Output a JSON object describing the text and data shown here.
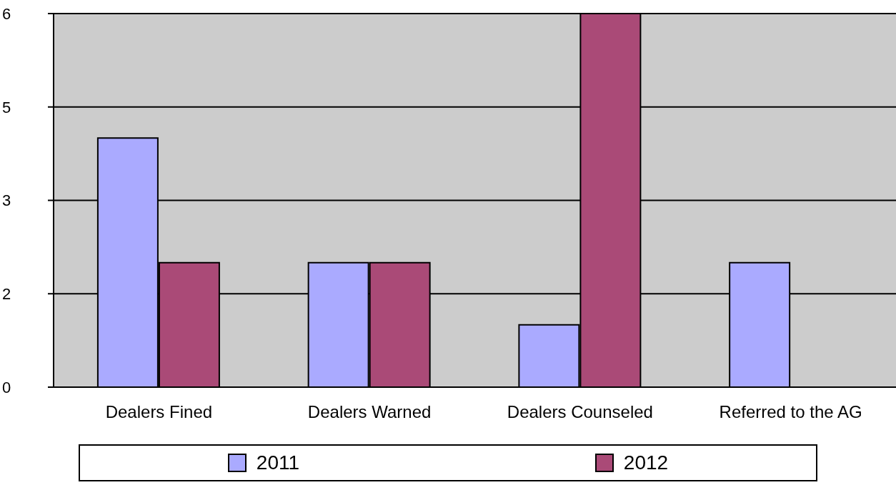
{
  "chart_data": {
    "type": "bar",
    "categories": [
      "Dealers Fined",
      "Dealers Warned",
      "Dealers Counseled",
      "Referred to the AG"
    ],
    "series": [
      {
        "name": "2011",
        "color": "#aaaaff",
        "values": [
          4,
          2,
          1,
          2
        ]
      },
      {
        "name": "2012",
        "color": "#aa4a77",
        "values": [
          2,
          2,
          6,
          null
        ]
      }
    ],
    "ylim": [
      0,
      6
    ],
    "yticks": [
      0,
      {
        "value": 1.5,
        "label": "2"
      },
      3,
      {
        "value": 4.5,
        "label": "5"
      },
      6
    ],
    "grid": "y",
    "legend": "bottom"
  }
}
